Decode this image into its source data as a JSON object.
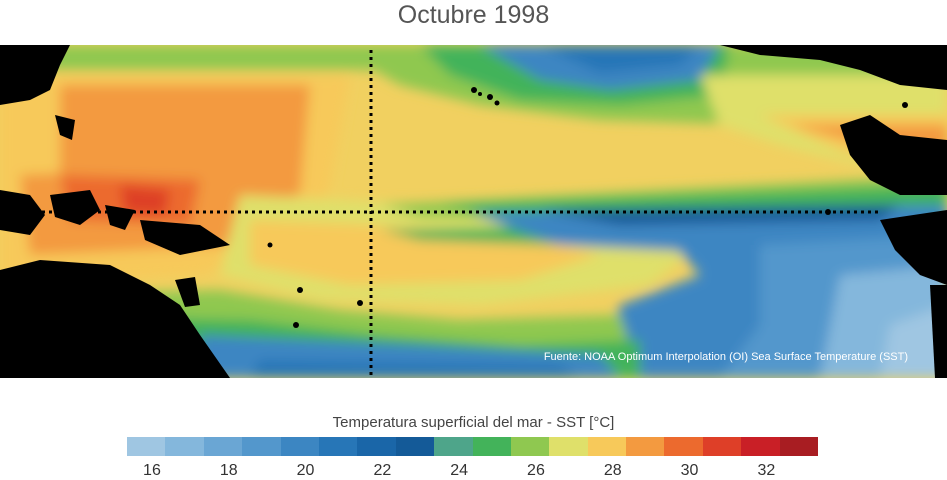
{
  "title": "Octubre 1998",
  "source_note": "Fuente: NOAA Optimum Interpolation (OI) Sea Surface Temperature (SST)",
  "legend": {
    "title": "Temperatura superficial del mar - SST  [°C]",
    "bins": [
      {
        "color": "#9fc6e2"
      },
      {
        "color": "#84b7dc"
      },
      {
        "color": "#6aa6d4"
      },
      {
        "color": "#5397cc"
      },
      {
        "color": "#3c86c2"
      },
      {
        "color": "#2776b7"
      },
      {
        "color": "#1a66a8"
      },
      {
        "color": "#145a98"
      },
      {
        "color": "#4ea58a"
      },
      {
        "color": "#43b35a"
      },
      {
        "color": "#8fc850"
      },
      {
        "color": "#dfe06a"
      },
      {
        "color": "#f7c95a"
      },
      {
        "color": "#f39a40"
      },
      {
        "color": "#ec6a2e"
      },
      {
        "color": "#de3f28"
      },
      {
        "color": "#c91f26"
      },
      {
        "color": "#a81d22"
      }
    ],
    "ticks": [
      "16",
      "18",
      "20",
      "22",
      "24",
      "26",
      "28",
      "30",
      "32"
    ]
  }
}
